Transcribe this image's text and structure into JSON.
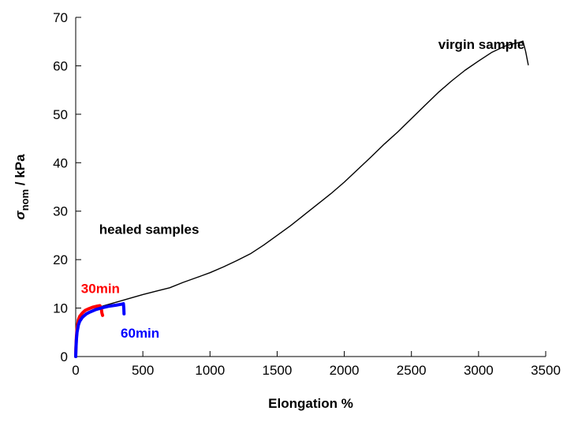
{
  "chart_data": {
    "type": "line",
    "title": "",
    "xlabel": "Elongation %",
    "ylabel": {
      "main": "σ",
      "sub": "nom",
      "unit": " / kPa"
    },
    "xlim": [
      0,
      3500
    ],
    "ylim": [
      0,
      70
    ],
    "xticks": [
      0,
      500,
      1000,
      1500,
      2000,
      2500,
      3000,
      3500
    ],
    "yticks": [
      0,
      10,
      20,
      30,
      40,
      50,
      60,
      70
    ],
    "grid": false,
    "legend": "none",
    "series": [
      {
        "color": "#000000",
        "x": [
          0,
          5,
          10,
          20,
          30,
          50,
          100,
          200,
          300,
          400,
          500,
          600,
          700,
          800,
          900,
          1000,
          1100,
          1200,
          1300,
          1400,
          1500,
          1600,
          1700,
          1800,
          1900,
          2000,
          2100,
          2200,
          2300,
          2400,
          2500,
          2600,
          2700,
          2800,
          2900,
          3000,
          3100,
          3200,
          3250,
          3300,
          3330,
          3350,
          3370
        ],
        "y": [
          0,
          3,
          5,
          6.5,
          7.2,
          8,
          9.3,
          10.4,
          11.2,
          12,
          12.8,
          13.5,
          14.2,
          15.3,
          16.3,
          17.3,
          18.5,
          19.8,
          21.2,
          23,
          25,
          27,
          29.2,
          31.4,
          33.6,
          36,
          38.6,
          41.2,
          43.9,
          46.4,
          49.1,
          51.8,
          54.5,
          56.9,
          59.1,
          61,
          62.8,
          64.1,
          64.5,
          64.8,
          65.1,
          63,
          60.2
        ]
      },
      {
        "color": "#ff0000",
        "x": [
          0,
          2,
          5,
          10,
          20,
          30,
          50,
          70,
          100,
          130,
          160,
          180,
          190,
          195,
          200
        ],
        "y": [
          0,
          2,
          4,
          5.8,
          7.6,
          8.3,
          9,
          9.5,
          9.9,
          10.2,
          10.4,
          10.5,
          10,
          9,
          8.5
        ],
        "annotation": "30min"
      },
      {
        "color": "#0000ff",
        "x": [
          0,
          2,
          5,
          10,
          20,
          30,
          50,
          80,
          100,
          150,
          200,
          250,
          300,
          340,
          355,
          358,
          360
        ],
        "y": [
          0,
          1.5,
          3.5,
          5,
          6.5,
          7.3,
          8.1,
          8.8,
          9.1,
          9.7,
          10.1,
          10.4,
          10.6,
          10.8,
          10.9,
          10,
          8.8
        ],
        "annotation": "60min"
      }
    ],
    "annotations": [
      {
        "text": "virgin sample",
        "x": 2700,
        "y": 63.5,
        "color": "#000000"
      },
      {
        "text": "healed samples",
        "x": 175,
        "y": 25.3,
        "color": "#000000"
      },
      {
        "text": "30min",
        "x": 40,
        "y": 13.1,
        "color": "#ff0000"
      },
      {
        "text": "60min",
        "x": 335,
        "y": 3.9,
        "color": "#0000ff"
      }
    ]
  }
}
